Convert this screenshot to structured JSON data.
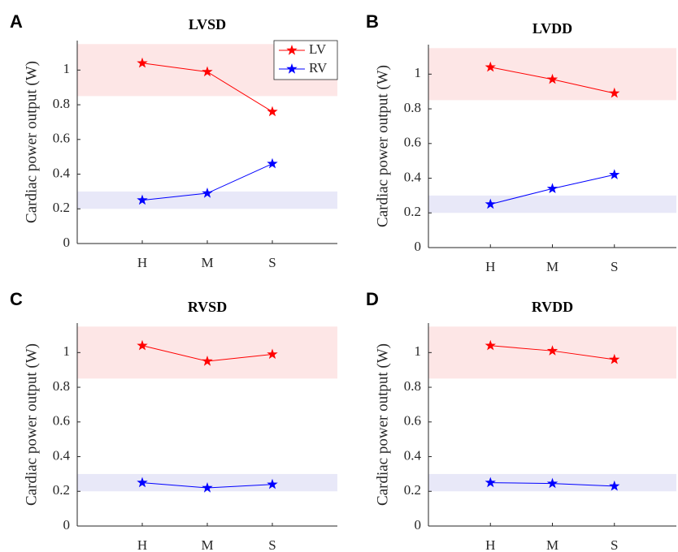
{
  "chart_data": [
    {
      "type": "line",
      "panel": "A",
      "title": "LVSD",
      "y_label": "Cardiac power output (W)",
      "categories": [
        "H",
        "M",
        "S"
      ],
      "ylim": [
        0,
        1.17
      ],
      "yticks": [
        0,
        0.2,
        0.4,
        0.6,
        0.8,
        1
      ],
      "bands": [
        {
          "range": [
            0.85,
            1.15
          ],
          "color": "#fde6e6"
        },
        {
          "range": [
            0.2,
            0.3
          ],
          "color": "#e8e8f8"
        }
      ],
      "legend": "upper right",
      "series": [
        {
          "name": "LV",
          "color": "#ff0000",
          "values": [
            1.04,
            0.99,
            0.76
          ]
        },
        {
          "name": "RV",
          "color": "#0000ff",
          "values": [
            0.25,
            0.29,
            0.46
          ]
        }
      ]
    },
    {
      "type": "line",
      "panel": "B",
      "title": "LVDD",
      "y_label": "Cardiac power output (W)",
      "categories": [
        "H",
        "M",
        "S"
      ],
      "ylim": [
        0,
        1.17
      ],
      "yticks": [
        0,
        0.2,
        0.4,
        0.6,
        0.8,
        1
      ],
      "bands": [
        {
          "range": [
            0.85,
            1.15
          ],
          "color": "#fde6e6"
        },
        {
          "range": [
            0.2,
            0.3
          ],
          "color": "#e8e8f8"
        }
      ],
      "series": [
        {
          "color": "#ff0000",
          "values": [
            1.04,
            0.97,
            0.89
          ]
        },
        {
          "color": "#0000ff",
          "values": [
            0.25,
            0.34,
            0.42
          ]
        }
      ]
    },
    {
      "type": "line",
      "panel": "C",
      "title": "RVSD",
      "y_label": "Cardiac power output (W)",
      "categories": [
        "H",
        "M",
        "S"
      ],
      "ylim": [
        0,
        1.17
      ],
      "yticks": [
        0,
        0.2,
        0.4,
        0.6,
        0.8,
        1
      ],
      "bands": [
        {
          "range": [
            0.85,
            1.15
          ],
          "color": "#fde6e6"
        },
        {
          "range": [
            0.2,
            0.3
          ],
          "color": "#e8e8f8"
        }
      ],
      "series": [
        {
          "color": "#ff0000",
          "values": [
            1.04,
            0.95,
            0.99
          ]
        },
        {
          "color": "#0000ff",
          "values": [
            0.25,
            0.22,
            0.24
          ]
        }
      ]
    },
    {
      "type": "line",
      "panel": "D",
      "title": "RVDD",
      "y_label": "Cardiac power output (W)",
      "categories": [
        "H",
        "M",
        "S"
      ],
      "ylim": [
        0,
        1.17
      ],
      "yticks": [
        0,
        0.2,
        0.4,
        0.6,
        0.8,
        1
      ],
      "bands": [
        {
          "range": [
            0.85,
            1.15
          ],
          "color": "#fde6e6"
        },
        {
          "range": [
            0.2,
            0.3
          ],
          "color": "#e8e8f8"
        }
      ],
      "series": [
        {
          "color": "#ff0000",
          "values": [
            1.04,
            1.01,
            0.96
          ]
        },
        {
          "color": "#0000ff",
          "values": [
            0.25,
            0.245,
            0.23
          ]
        }
      ]
    }
  ]
}
